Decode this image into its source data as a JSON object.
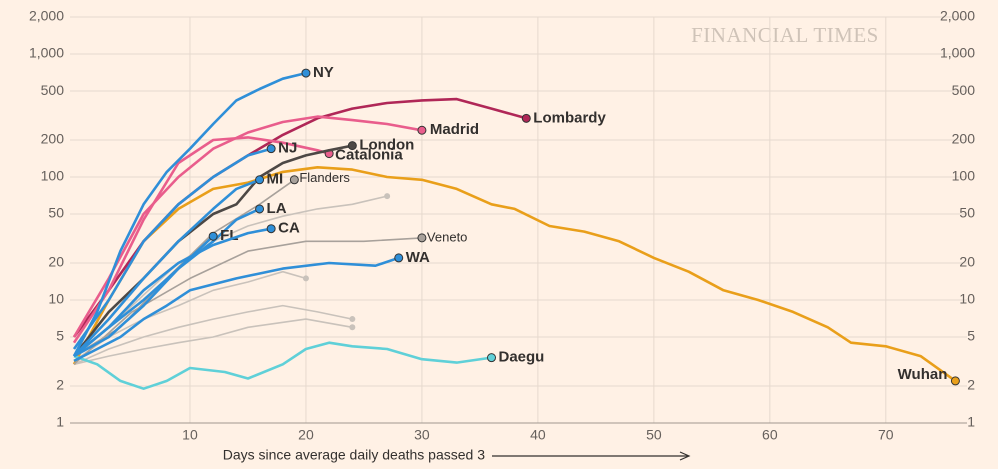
{
  "chart_data": {
    "type": "line",
    "x_label": "Days since average daily deaths passed 3",
    "watermark": "FINANCIAL TIMES",
    "log_y": true,
    "grid": true,
    "xlim": [
      0,
      77
    ],
    "ylim": [
      1,
      2000
    ],
    "xticks": [
      10,
      20,
      30,
      40,
      50,
      60,
      70
    ],
    "yticks": [
      {
        "value": 2000,
        "label": "2,000"
      },
      {
        "value": 1000,
        "label": "1,000"
      },
      500,
      200,
      100,
      50,
      20,
      10,
      5,
      2,
      1
    ],
    "series": [
      {
        "color": "#c9c2bb",
        "x": [
          0,
          3,
          6,
          9,
          12,
          15,
          18,
          21,
          24,
          27
        ],
        "values": [
          3.5,
          6,
          11,
          20,
          30,
          40,
          48,
          55,
          60,
          70
        ]
      },
      {
        "color": "#c9c2bb",
        "x": [
          0,
          3,
          6,
          9,
          12,
          15,
          18,
          20
        ],
        "values": [
          3.2,
          5,
          7,
          9,
          12,
          14,
          17,
          15
        ]
      },
      {
        "color": "#c9c2bb",
        "x": [
          0,
          3,
          6,
          9,
          12,
          15,
          18,
          21,
          24
        ],
        "values": [
          3,
          4,
          5,
          6,
          7,
          8,
          9,
          8,
          7
        ]
      },
      {
        "color": "#c9c2bb",
        "x": [
          0,
          3,
          6,
          9,
          12,
          15,
          20,
          24
        ],
        "values": [
          3,
          3.5,
          4,
          4.5,
          5,
          6,
          7,
          6
        ]
      },
      {
        "name": "Wuhan",
        "color": "#e99f1a",
        "x": [
          0,
          3,
          6,
          9,
          12,
          15,
          18,
          21,
          24,
          27,
          30,
          33,
          36,
          38,
          41,
          44,
          47,
          50,
          53,
          56,
          59,
          62,
          65,
          67,
          70,
          73,
          76
        ],
        "values": [
          3,
          10,
          30,
          55,
          80,
          90,
          110,
          120,
          115,
          100,
          95,
          80,
          60,
          55,
          40,
          36,
          30,
          22,
          17,
          12,
          10,
          8,
          6,
          4.5,
          4.2,
          3.5,
          2.2
        ]
      },
      {
        "name": "Flanders",
        "color": "#a8a19b",
        "x": [
          0,
          4,
          8,
          12,
          16,
          19
        ],
        "values": [
          3.5,
          6,
          15,
          35,
          60,
          95
        ]
      },
      {
        "name": "Veneto",
        "color": "#a8a19b",
        "x": [
          0,
          5,
          10,
          15,
          20,
          25,
          30
        ],
        "values": [
          3,
          8,
          15,
          25,
          30,
          30,
          32
        ]
      },
      {
        "name": "Daegu",
        "color": "#5fd0d8",
        "x": [
          0,
          2,
          4,
          6,
          8,
          10,
          13,
          15,
          18,
          20,
          22,
          24,
          27,
          30,
          33,
          36
        ],
        "values": [
          3.5,
          3,
          2.2,
          1.9,
          2.2,
          2.8,
          2.6,
          2.3,
          3,
          4,
          4.5,
          4.2,
          4,
          3.3,
          3.1,
          3.4
        ]
      },
      {
        "name": "Lombardy",
        "color": "#b02757",
        "x": [
          0,
          3,
          6,
          9,
          12,
          15,
          18,
          21,
          24,
          27,
          30,
          33,
          36,
          39
        ],
        "values": [
          5,
          12,
          30,
          60,
          100,
          150,
          220,
          300,
          360,
          400,
          420,
          430,
          360,
          300
        ]
      },
      {
        "name": "Madrid",
        "color": "#e95d8c",
        "x": [
          0,
          3,
          6,
          9,
          12,
          15,
          18,
          21,
          24,
          27,
          30
        ],
        "values": [
          5,
          15,
          50,
          100,
          170,
          230,
          280,
          310,
          290,
          270,
          240
        ]
      },
      {
        "name": "Catalonia",
        "color": "#e95d8c",
        "x": [
          0,
          3,
          6,
          9,
          12,
          15,
          18,
          21,
          22
        ],
        "values": [
          4.5,
          12,
          45,
          130,
          200,
          210,
          190,
          165,
          155
        ]
      },
      {
        "name": "London",
        "color": "#4d4845",
        "x": [
          0,
          3,
          6,
          9,
          12,
          14,
          16,
          18,
          20,
          22,
          24
        ],
        "values": [
          3.5,
          8,
          15,
          30,
          50,
          60,
          100,
          130,
          150,
          165,
          180
        ]
      },
      {
        "name": "NY",
        "color": "#2f8fd8",
        "x": [
          0,
          2,
          4,
          6,
          8,
          10,
          12,
          14,
          16,
          18,
          20
        ],
        "values": [
          3.5,
          8,
          25,
          60,
          110,
          170,
          270,
          420,
          520,
          630,
          700
        ]
      },
      {
        "name": "NJ",
        "color": "#2f8fd8",
        "x": [
          0,
          3,
          6,
          9,
          12,
          15,
          17
        ],
        "values": [
          4,
          10,
          30,
          60,
          100,
          150,
          170
        ]
      },
      {
        "name": "MI",
        "color": "#2f8fd8",
        "x": [
          0,
          3,
          6,
          9,
          12,
          14,
          16
        ],
        "values": [
          3.5,
          7,
          15,
          30,
          55,
          80,
          95
        ]
      },
      {
        "name": "LA",
        "color": "#2f8fd8",
        "x": [
          0,
          3,
          6,
          9,
          12,
          14,
          16
        ],
        "values": [
          3.5,
          6,
          10,
          18,
          30,
          45,
          55
        ]
      },
      {
        "name": "FL",
        "color": "#2f8fd8",
        "x": [
          0,
          3,
          6,
          9,
          12
        ],
        "values": [
          3.5,
          5,
          9,
          18,
          33
        ]
      },
      {
        "name": "CA",
        "color": "#2f8fd8",
        "x": [
          0,
          3,
          6,
          9,
          12,
          15,
          17
        ],
        "values": [
          3.5,
          6,
          12,
          20,
          28,
          35,
          38
        ]
      },
      {
        "name": "WA",
        "color": "#2f8fd8",
        "x": [
          0,
          2,
          4,
          6,
          8,
          10,
          14,
          18,
          22,
          26,
          28
        ],
        "values": [
          3.2,
          4,
          5,
          7,
          9,
          12,
          15,
          18,
          20,
          19,
          22
        ]
      }
    ]
  }
}
